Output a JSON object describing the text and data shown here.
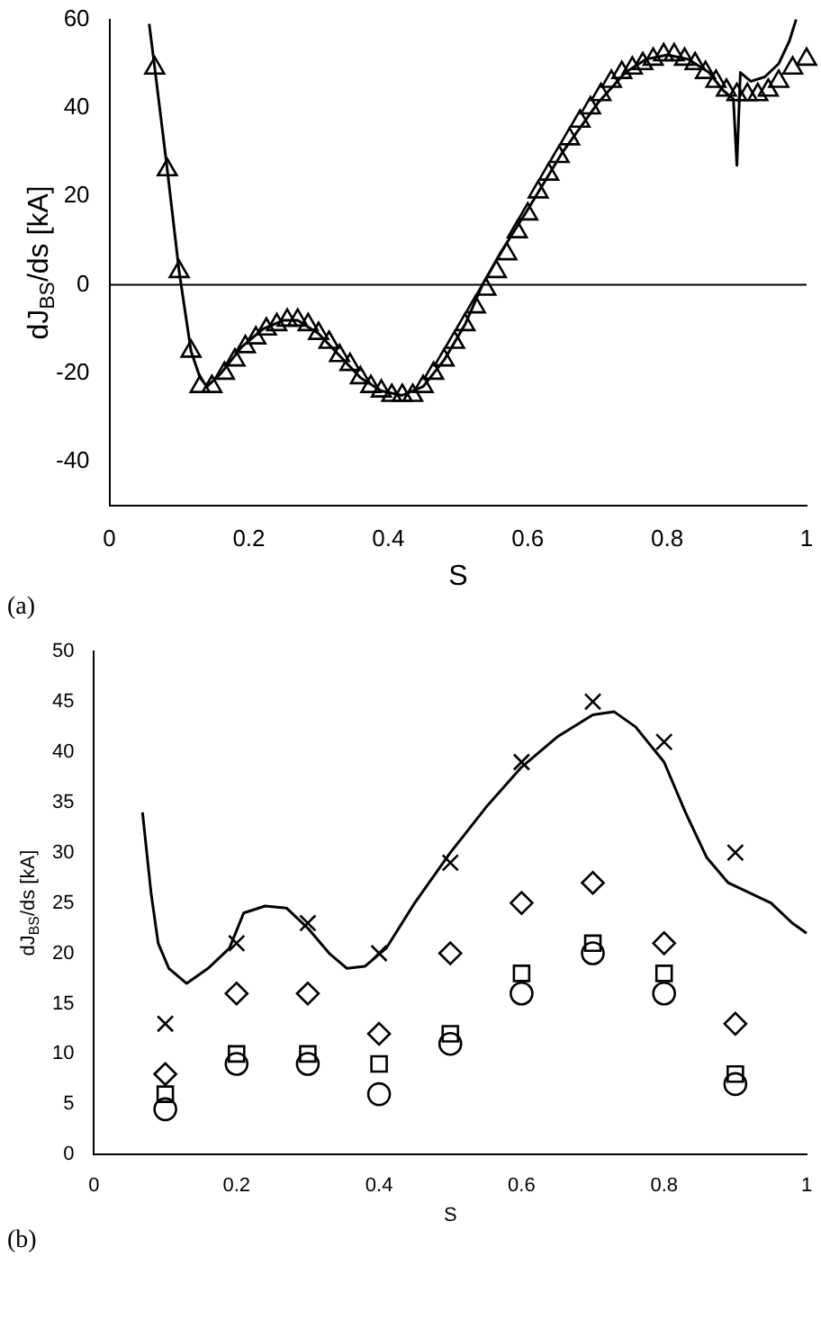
{
  "chart_data": [
    {
      "type": "line",
      "xlabel": "S",
      "ylabel": "dJ$_{BS}$/ds [kA]",
      "xlim": [
        0,
        1
      ],
      "xticks": [
        0,
        0.2,
        0.4,
        0.6,
        0.8,
        1
      ],
      "ylim": [
        -50,
        60
      ],
      "yticks": [
        -40,
        -20,
        0,
        20,
        40,
        60
      ],
      "grid": false,
      "legend": false,
      "annotations": [
        "(a)"
      ],
      "ref_lines": [
        {
          "axis": "y",
          "value": 0,
          "color": "#000000"
        }
      ],
      "series": [
        {
          "type": "line",
          "color": "#000000",
          "marker": "none",
          "line_style": "solid",
          "x": [
            0.057,
            0.065,
            0.083,
            0.1,
            0.117,
            0.13,
            0.14,
            0.16,
            0.19,
            0.22,
            0.25,
            0.27,
            0.3,
            0.33,
            0.36,
            0.39,
            0.42,
            0.45,
            0.48,
            0.51,
            0.535,
            0.56,
            0.6,
            0.65,
            0.7,
            0.74,
            0.77,
            0.8,
            0.83,
            0.86,
            0.88,
            0.895,
            0.9,
            0.905,
            0.92,
            0.94,
            0.96,
            0.975,
            0.985
          ],
          "values": [
            59,
            49,
            26,
            3,
            -15,
            -21,
            -23,
            -20,
            -14,
            -10,
            -8,
            -8,
            -11,
            -16,
            -21,
            -24,
            -25,
            -23,
            -17,
            -9,
            0,
            7,
            17,
            30,
            41,
            48,
            51,
            52,
            51,
            48,
            44,
            42,
            27,
            48,
            46,
            47,
            50,
            55,
            60
          ]
        },
        {
          "type": "scatter",
          "color": "#000000",
          "marker": "triangle",
          "x": [
            0.065,
            0.083,
            0.1,
            0.117,
            0.13,
            0.147,
            0.165,
            0.18,
            0.195,
            0.21,
            0.225,
            0.24,
            0.255,
            0.27,
            0.285,
            0.3,
            0.315,
            0.33,
            0.345,
            0.36,
            0.375,
            0.39,
            0.405,
            0.42,
            0.435,
            0.45,
            0.465,
            0.48,
            0.495,
            0.51,
            0.525,
            0.54,
            0.555,
            0.57,
            0.585,
            0.6,
            0.615,
            0.63,
            0.645,
            0.66,
            0.675,
            0.69,
            0.705,
            0.72,
            0.735,
            0.75,
            0.765,
            0.78,
            0.795,
            0.81,
            0.825,
            0.84,
            0.855,
            0.87,
            0.885,
            0.9,
            0.915,
            0.93,
            0.945,
            0.96,
            0.98,
            1.0
          ],
          "values": [
            49,
            26,
            3,
            -15,
            -23,
            -23,
            -20,
            -17,
            -14,
            -12,
            -10,
            -9,
            -8,
            -8,
            -9,
            -11,
            -13,
            -16,
            -18,
            -21,
            -23,
            -24,
            -25,
            -25,
            -25,
            -23,
            -20,
            -17,
            -13,
            -9,
            -5,
            -1,
            3,
            7,
            12,
            16,
            21,
            25,
            29,
            33,
            37,
            40,
            43,
            46,
            48,
            49,
            50,
            51,
            52,
            52,
            51,
            50,
            48,
            46,
            44,
            43,
            43,
            43,
            44,
            46,
            49,
            51
          ]
        }
      ]
    },
    {
      "type": "line",
      "xlabel": "S",
      "ylabel": "dJ$_{BS}$/ds [kA]",
      "xlim": [
        0,
        1
      ],
      "xticks": [
        0,
        0.2,
        0.4,
        0.6,
        0.8,
        1
      ],
      "ylim": [
        0,
        50
      ],
      "yticks": [
        0,
        5,
        10,
        15,
        20,
        25,
        30,
        35,
        40,
        45,
        50
      ],
      "grid": false,
      "legend": false,
      "annotations": [
        "(b)"
      ],
      "series": [
        {
          "type": "line",
          "color": "#000000",
          "marker": "none",
          "line_style": "solid",
          "x": [
            0.068,
            0.08,
            0.09,
            0.105,
            0.13,
            0.16,
            0.19,
            0.21,
            0.24,
            0.27,
            0.3,
            0.33,
            0.355,
            0.38,
            0.41,
            0.45,
            0.5,
            0.55,
            0.6,
            0.65,
            0.7,
            0.73,
            0.76,
            0.8,
            0.83,
            0.86,
            0.89,
            0.92,
            0.95,
            0.98,
            1.0
          ],
          "values": [
            34,
            26,
            21,
            18.5,
            17,
            18.5,
            20.5,
            24,
            24.7,
            24.5,
            22.5,
            20,
            18.5,
            18.7,
            20.5,
            25,
            30,
            34.5,
            38.5,
            41.5,
            43.7,
            44,
            42.5,
            39,
            34,
            29.5,
            27,
            26,
            25,
            23,
            22
          ]
        },
        {
          "type": "scatter",
          "color": "#000000",
          "marker": "cross",
          "x": [
            0.1,
            0.2,
            0.3,
            0.4,
            0.5,
            0.6,
            0.7,
            0.8,
            0.9
          ],
          "values": [
            13,
            21,
            23,
            20,
            29,
            39,
            45,
            41,
            30
          ]
        },
        {
          "type": "scatter",
          "color": "#000000",
          "marker": "diamond",
          "x": [
            0.1,
            0.2,
            0.3,
            0.4,
            0.5,
            0.6,
            0.7,
            0.8,
            0.9
          ],
          "values": [
            8,
            16,
            16,
            12,
            20,
            25,
            27,
            21,
            13
          ]
        },
        {
          "type": "scatter",
          "color": "#000000",
          "marker": "square",
          "x": [
            0.1,
            0.2,
            0.3,
            0.4,
            0.5,
            0.6,
            0.7,
            0.8,
            0.9
          ],
          "values": [
            6,
            10,
            10,
            9,
            12,
            18,
            21,
            18,
            8
          ]
        },
        {
          "type": "scatter",
          "color": "#000000",
          "marker": "circle",
          "x": [
            0.1,
            0.2,
            0.3,
            0.4,
            0.5,
            0.6,
            0.7,
            0.8,
            0.9
          ],
          "values": [
            4.5,
            9,
            9,
            6,
            11,
            16,
            20,
            16,
            7
          ]
        }
      ]
    }
  ]
}
